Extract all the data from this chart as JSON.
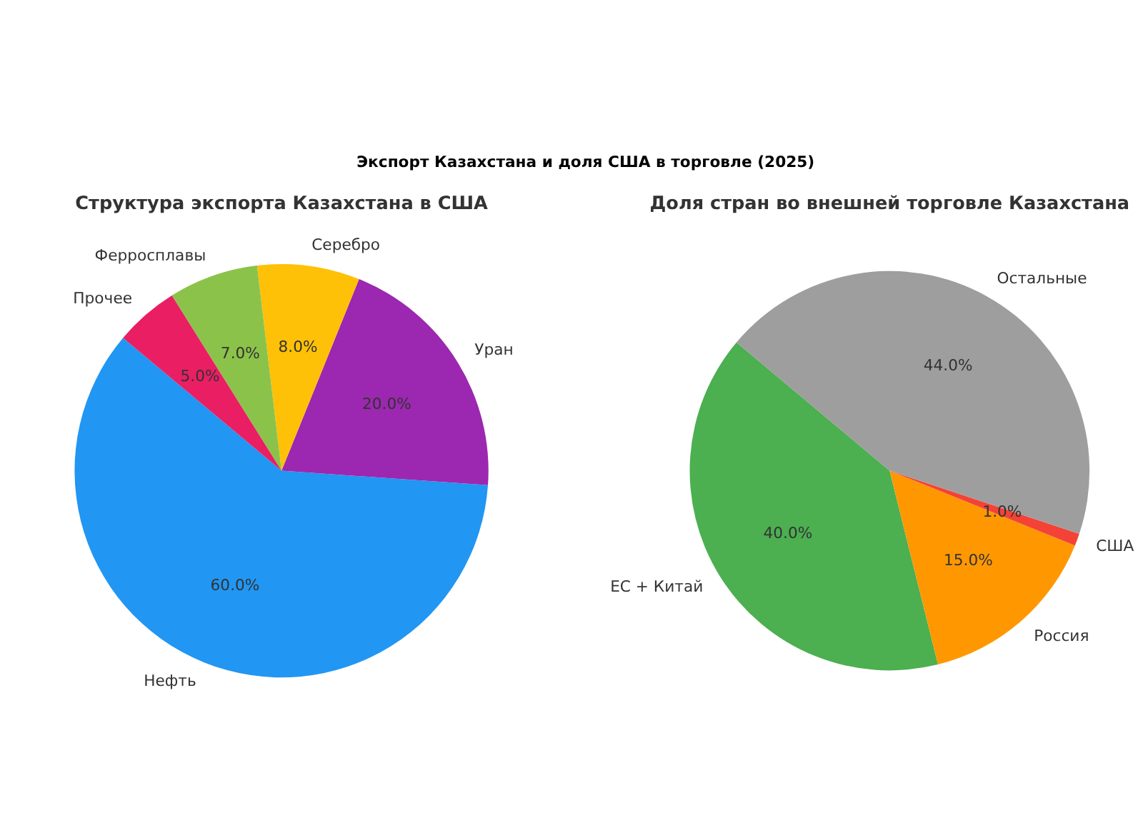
{
  "chart_data": [
    {
      "type": "pie",
      "title": "Структура экспорта Казахстана в США",
      "annotations": [
        "Экспорт Казахстана и доля США в торговле (2025)"
      ],
      "categories": [
        "Нефть",
        "Уран",
        "Серебро",
        "Ферросплавы",
        "Прочее"
      ],
      "values": [
        60,
        20,
        8,
        7,
        5
      ],
      "colors": [
        "#2196f3",
        "#9c27b0",
        "#ffc107",
        "#8bc34a",
        "#e91e63"
      ],
      "value_labels": [
        "60.0%",
        "20.0%",
        "8.0%",
        "7.0%",
        "5.0%"
      ]
    },
    {
      "type": "pie",
      "title": "Доля стран во внешней торговле Казахстана",
      "categories": [
        "ЕС + Китай",
        "Россия",
        "США",
        "Остальные"
      ],
      "values": [
        40,
        15,
        1,
        44
      ],
      "colors": [
        "#4caf50",
        "#ff9800",
        "#f44336",
        "#9e9e9e"
      ],
      "value_labels": [
        "40.0%",
        "15.0%",
        "1.0%",
        "44.0%"
      ]
    }
  ]
}
